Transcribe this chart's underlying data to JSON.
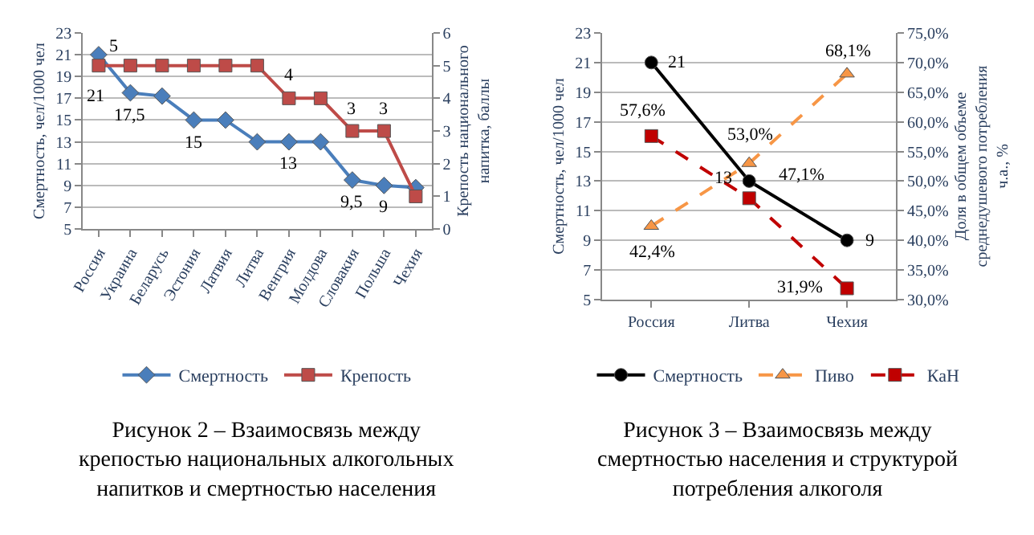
{
  "chart_data": [
    {
      "type": "line",
      "categories": [
        "Россия",
        "Украина",
        "Беларусь",
        "Эстония",
        "Латвия",
        "Литва",
        "Венгрия",
        "Молдова",
        "Словакия",
        "Польша",
        "Чехия"
      ],
      "series": [
        {
          "name": "Смертность",
          "color": "#4a7ebb",
          "marker": "diamond",
          "line_style": "solid",
          "values": [
            21,
            17.5,
            17.2,
            15,
            15,
            13,
            13,
            13,
            9.5,
            9,
            8.8
          ],
          "value_labels": [
            "21",
            "17,5",
            null,
            "15",
            null,
            null,
            "13",
            null,
            "9,5",
            "9",
            null
          ]
        },
        {
          "name": "Крепость",
          "color": "#be4b48",
          "marker": "square",
          "line_style": "solid",
          "axis": "y2",
          "values": [
            5,
            5,
            5,
            5,
            5,
            5,
            4,
            4,
            3,
            3,
            1
          ],
          "value_labels": [
            "5",
            null,
            null,
            null,
            null,
            null,
            "4",
            null,
            "3",
            "3",
            null
          ]
        }
      ],
      "ylabel": "Смертность, чел/1000 чел",
      "y2label": "Крепость национального напитка, баллы",
      "ylim": [
        5,
        23
      ],
      "yticks": [
        5,
        7,
        9,
        11,
        13,
        15,
        17,
        19,
        21,
        23
      ],
      "y2lim": [
        0,
        6
      ],
      "y2ticks": [
        0,
        1,
        2,
        3,
        4,
        5,
        6
      ],
      "grid": "y",
      "legend": "bottom",
      "annotations": [
        "Рисунок 2 – Взаимосвязь между крепостью национальных алкогольных напитков и смертностью населения"
      ]
    },
    {
      "type": "line",
      "categories": [
        "Россия",
        "Литва",
        "Чехия"
      ],
      "series": [
        {
          "name": "Смертность",
          "color": "#000000",
          "marker": "circle",
          "line_style": "solid",
          "values": [
            21,
            13,
            9
          ],
          "value_labels": [
            "21",
            "13",
            "9"
          ]
        },
        {
          "name": "Пиво",
          "color": "#f79646",
          "marker": "triangle",
          "line_style": "dashed",
          "axis": "y2",
          "values": [
            42.4,
            53,
            68.1
          ],
          "value_labels": [
            "42,4%",
            "53,0%",
            "68,1%"
          ]
        },
        {
          "name": "КаН",
          "color": "#c00000",
          "marker": "square",
          "line_style": "dashed",
          "axis": "y2",
          "values": [
            57.6,
            47.1,
            31.9
          ],
          "value_labels": [
            "57,6%",
            "47,1%",
            "31,9%"
          ]
        }
      ],
      "ylabel": "Смертность, чел/1000 чел",
      "y2label": "Доля в общем объеме среднедушевого потребления ч.а., %",
      "ylim": [
        5,
        23
      ],
      "yticks": [
        5,
        7,
        9,
        11,
        13,
        15,
        17,
        19,
        21,
        23
      ],
      "y2lim": [
        30,
        75
      ],
      "y2ticks": [
        {
          "value": 30,
          "label": "30,0%"
        },
        {
          "value": 35,
          "label": "35,0%"
        },
        {
          "value": 40,
          "label": "40,0%"
        },
        {
          "value": 45,
          "label": "45,0%"
        },
        {
          "value": 50,
          "label": "50,0%"
        },
        {
          "value": 55,
          "label": "55,0%"
        },
        {
          "value": 60,
          "label": "60,0%"
        },
        {
          "value": 65,
          "label": "65,0%"
        },
        {
          "value": 70,
          "label": "70,0%"
        },
        {
          "value": 75,
          "label": "75,0%"
        }
      ],
      "grid": "y",
      "legend": "bottom",
      "annotations": [
        "Рисунок 3 – Взаимосвязь между смертностью населения и структурой потребления алкоголя"
      ]
    }
  ]
}
